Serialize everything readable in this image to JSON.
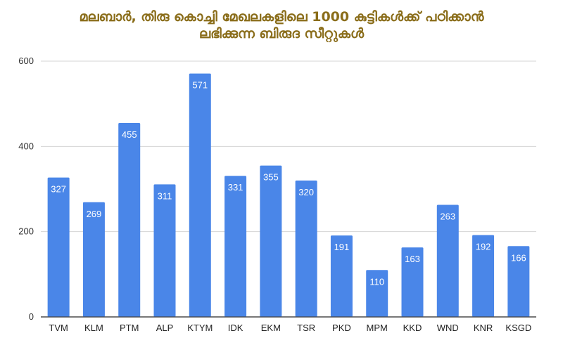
{
  "chart_data": {
    "type": "bar",
    "title_lines": [
      "മലബാർ, തിരു കൊച്ചി മേഖലകളിലെ 1000 കുട്ടികൾക്ക് പഠിക്കാൻ",
      "ലഭിക്കുന്ന ബിരുദ സീറ്റുകൾ"
    ],
    "categories": [
      "TVM",
      "KLM",
      "PTM",
      "ALP",
      "KTYM",
      "IDK",
      "EKM",
      "TSR",
      "PKD",
      "MPM",
      "KKD",
      "WND",
      "KNR",
      "KSGD"
    ],
    "values": [
      327,
      269,
      455,
      311,
      571,
      331,
      355,
      320,
      191,
      110,
      163,
      263,
      192,
      166
    ],
    "yticks": [
      0,
      200,
      400,
      600
    ],
    "ylim": [
      0,
      600
    ],
    "grid": true,
    "bar_color": "#4a86e8",
    "data_labels": true
  }
}
